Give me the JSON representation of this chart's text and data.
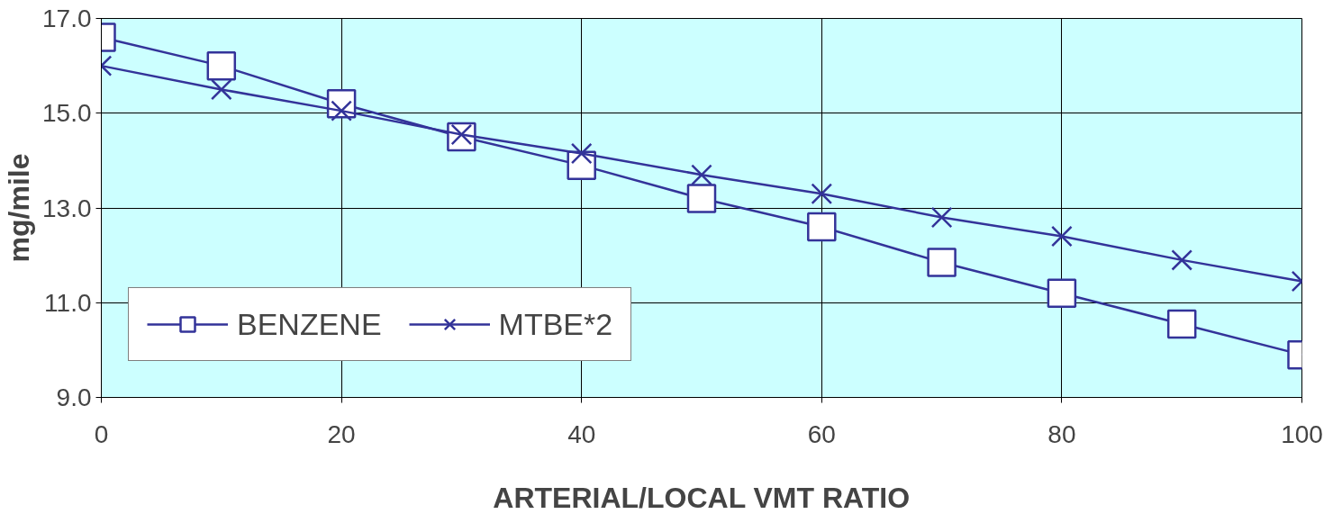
{
  "chart_data": {
    "type": "line",
    "xlabel": "ARTERIAL/LOCAL VMT RATIO",
    "ylabel": "mg/mile",
    "x": [
      0,
      10,
      20,
      30,
      40,
      50,
      60,
      70,
      80,
      90,
      100
    ],
    "series": [
      {
        "name": "BENZENE",
        "color": "#333399",
        "marker": "square",
        "values": [
          16.6,
          16.0,
          15.2,
          14.5,
          13.9,
          13.2,
          12.6,
          11.85,
          11.2,
          10.55,
          9.9
        ]
      },
      {
        "name": "MTBE*2",
        "color": "#333399",
        "marker": "cross",
        "values": [
          16.0,
          15.5,
          15.05,
          14.55,
          14.15,
          13.7,
          13.3,
          12.8,
          12.4,
          11.9,
          11.45
        ]
      }
    ],
    "xlim": [
      0,
      100
    ],
    "xticks": [
      0,
      20,
      40,
      60,
      80,
      100
    ],
    "ylim": [
      9,
      17
    ],
    "yticks": [
      {
        "value": 9,
        "label": "9.0"
      },
      {
        "value": 11,
        "label": "11.0"
      },
      {
        "value": 13,
        "label": "13.0"
      },
      {
        "value": 15,
        "label": "15.0"
      },
      {
        "value": 17,
        "label": "17.0"
      }
    ],
    "grid": true,
    "legend": "left",
    "line_style": "solid"
  }
}
